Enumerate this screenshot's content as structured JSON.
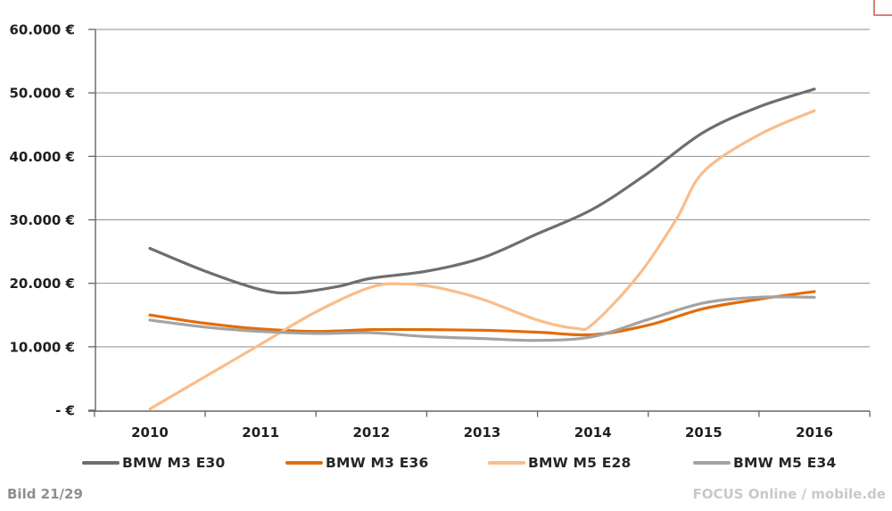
{
  "page": {
    "footer_left": "Bild 21/29",
    "footer_right": "FOCUS Online / mobile.de"
  },
  "chart_data": {
    "type": "line",
    "title": "",
    "xlabel": "",
    "ylabel": "",
    "grid": true,
    "legend_position": "bottom",
    "x_categories": [
      "2010",
      "2011",
      "2012",
      "2013",
      "2014",
      "2015",
      "2016"
    ],
    "y_axis": {
      "min": 0,
      "max": 60000,
      "step": 10000,
      "tick_labels_top_to_bottom": [
        "60.000 €",
        "50.000 €",
        "40.000 €",
        "30.000 €",
        "20.000 €",
        "10.000 €",
        "- €"
      ],
      "tick_values_top_to_bottom": [
        60000,
        50000,
        40000,
        30000,
        20000,
        10000,
        0
      ]
    },
    "series": [
      {
        "name": "BMW M3 E30",
        "color": "#6e6e6e",
        "points": [
          [
            2010,
            25500
          ],
          [
            2010.5,
            21900
          ],
          [
            2011,
            19000
          ],
          [
            2011.3,
            18500
          ],
          [
            2011.7,
            19500
          ],
          [
            2012,
            20800
          ],
          [
            2012.5,
            21900
          ],
          [
            2013,
            24000
          ],
          [
            2013.5,
            27800
          ],
          [
            2014,
            31700
          ],
          [
            2014.5,
            37400
          ],
          [
            2015,
            43800
          ],
          [
            2015.5,
            47800
          ],
          [
            2016,
            50600
          ]
        ]
      },
      {
        "name": "BMW M3 E36",
        "color": "#e36c0a",
        "points": [
          [
            2010,
            15000
          ],
          [
            2010.5,
            13700
          ],
          [
            2011,
            12800
          ],
          [
            2011.5,
            12400
          ],
          [
            2012,
            12700
          ],
          [
            2012.5,
            12700
          ],
          [
            2013,
            12600
          ],
          [
            2013.5,
            12300
          ],
          [
            2014,
            11900
          ],
          [
            2014.5,
            13400
          ],
          [
            2015,
            16000
          ],
          [
            2015.5,
            17500
          ],
          [
            2016,
            18700
          ]
        ]
      },
      {
        "name": "BMW M5 E28",
        "color": "#f9bd8a",
        "points": [
          [
            2010,
            200
          ],
          [
            2010.5,
            5300
          ],
          [
            2011,
            10400
          ],
          [
            2011.5,
            15500
          ],
          [
            2012,
            19400
          ],
          [
            2012.3,
            19900
          ],
          [
            2012.6,
            19300
          ],
          [
            2013,
            17500
          ],
          [
            2013.5,
            14200
          ],
          [
            2013.85,
            12900
          ],
          [
            2014,
            13600
          ],
          [
            2014.4,
            21000
          ],
          [
            2014.75,
            30000
          ],
          [
            2015,
            37600
          ],
          [
            2015.5,
            43400
          ],
          [
            2016,
            47200
          ]
        ]
      },
      {
        "name": "BMW M5 E34",
        "color": "#a3a3a3",
        "points": [
          [
            2010,
            14200
          ],
          [
            2010.5,
            13100
          ],
          [
            2011,
            12400
          ],
          [
            2011.5,
            12100
          ],
          [
            2012,
            12200
          ],
          [
            2012.5,
            11600
          ],
          [
            2013,
            11300
          ],
          [
            2013.5,
            11000
          ],
          [
            2014,
            11600
          ],
          [
            2014.5,
            14300
          ],
          [
            2015,
            16900
          ],
          [
            2015.5,
            17800
          ],
          [
            2016,
            17800
          ]
        ]
      }
    ],
    "style": {
      "grid_color": "#8f8f8f",
      "axis_color": "#666666",
      "tick_label_color": "#1f1f1f",
      "line_width": 3.2
    }
  }
}
